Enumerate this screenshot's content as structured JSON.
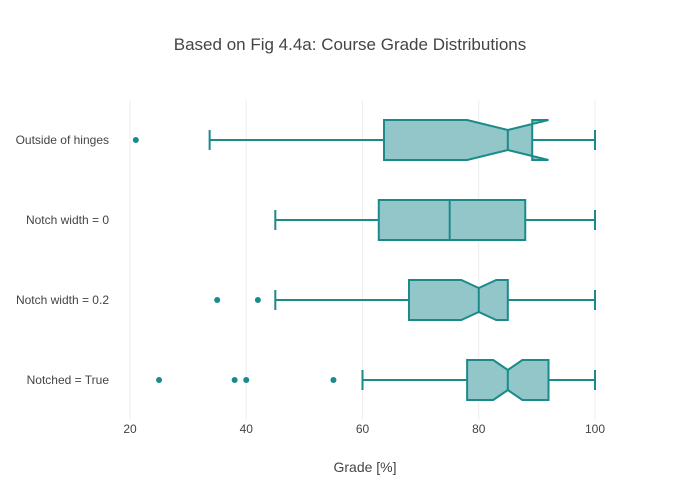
{
  "chart_data": {
    "type": "box",
    "orientation": "horizontal",
    "title": "Based on Fig 4.4a: Course Grade Distributions",
    "xlabel": "Grade [%]",
    "xlim": [
      15,
      110
    ],
    "xticks": [
      20,
      40,
      60,
      80,
      100
    ],
    "tick_labels": [
      "20",
      "40",
      "60",
      "80",
      "100"
    ],
    "grid": "vertical",
    "colors": {
      "stroke": "#1a8a8a",
      "fill": "#8dc3c6"
    },
    "series": [
      {
        "name": "Outside of hinges",
        "min": 33.7,
        "q1": 63.7,
        "median": 85,
        "q3": 89.2,
        "max": 100,
        "notched": true,
        "notch_low": 78,
        "notch_high": 92,
        "notch_width_fraction": 0.5,
        "outliers": [
          21
        ]
      },
      {
        "name": "Notch width = 0",
        "min": 45,
        "q1": 62.8,
        "median": 75,
        "q3": 88,
        "max": 100,
        "notched": false,
        "outliers": []
      },
      {
        "name": "Notch width = 0.2",
        "min": 45,
        "q1": 68,
        "median": 80,
        "q3": 85,
        "max": 100,
        "notched": true,
        "notch_low": 77,
        "notch_high": 83,
        "notch_width_fraction": 0.6,
        "outliers": [
          35,
          42
        ]
      },
      {
        "name": "Notched = True",
        "min": 60,
        "q1": 78,
        "median": 85,
        "q3": 92,
        "max": 100,
        "notched": true,
        "notch_low": 82.5,
        "notch_high": 87.5,
        "notch_width_fraction": 0.5,
        "outliers": [
          25,
          38,
          40,
          55
        ]
      }
    ]
  }
}
